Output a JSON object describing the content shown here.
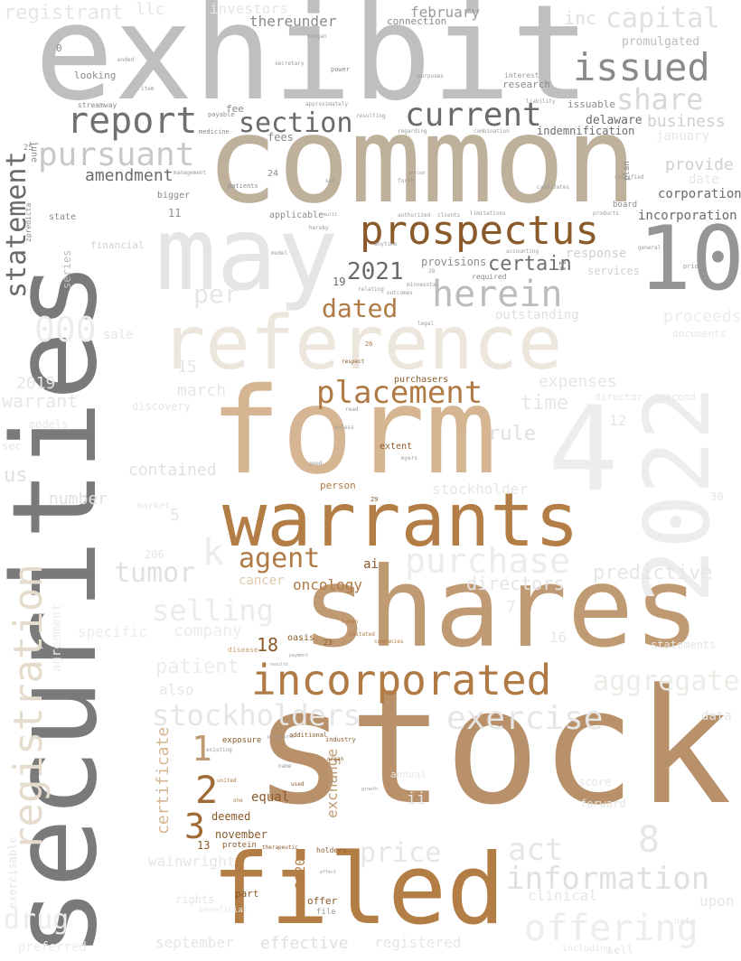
{
  "colors": {
    "background": "#ffffff",
    "light_gray": "#e8e8e8",
    "mid_gray": "#bdbdbd",
    "dark_gray": "#7a7a7a",
    "tan": "#c7a27a",
    "brown": "#b07a45",
    "dark_brown": "#8a5a2a",
    "beige": "#ede6dc"
  },
  "words": [
    {
      "text": "exhibit",
      "color": "#bfbfbf"
    },
    {
      "text": "common",
      "color": "#bfb09c"
    },
    {
      "text": "securities",
      "color": "#7a7a7a"
    },
    {
      "text": "stock",
      "color": "#b8906a"
    },
    {
      "text": "shares",
      "color": "#c09a72"
    },
    {
      "text": "form",
      "color": "#d5b592"
    },
    {
      "text": "may",
      "color": "#e5e5e5"
    },
    {
      "text": "reference",
      "color": "#ede6dc"
    },
    {
      "text": "filed",
      "color": "#b37d46"
    },
    {
      "text": "warrants",
      "color": "#b37d46"
    },
    {
      "text": "4",
      "color": "#ededed"
    },
    {
      "text": "2022",
      "color": "#ededed"
    },
    {
      "text": "10",
      "color": "#959595"
    },
    {
      "text": "registration",
      "color": "#e6dccd"
    },
    {
      "text": "incorporated",
      "color": "#b07a45"
    },
    {
      "text": "prospectus",
      "color": "#8a5a2a"
    },
    {
      "text": "placement",
      "color": "#b07a45"
    },
    {
      "text": "issued",
      "color": "#8a8a8a"
    },
    {
      "text": "report",
      "color": "#707070"
    },
    {
      "text": "current",
      "color": "#6a6a6a"
    },
    {
      "text": "section",
      "color": "#6a6a6a"
    },
    {
      "text": "pursuant",
      "color": "#c8c8c8"
    },
    {
      "text": "herein",
      "color": "#bcbcbc"
    },
    {
      "text": "statement",
      "color": "#6a6a6a"
    },
    {
      "text": "capital",
      "color": "#e0e0e0"
    },
    {
      "text": "share",
      "color": "#d8d8d8"
    },
    {
      "text": "offering",
      "color": "#ededed"
    },
    {
      "text": "information",
      "color": "#e0e0e0"
    },
    {
      "text": "purchase",
      "color": "#ececec"
    },
    {
      "text": "exercise",
      "color": "#e6e6e6"
    },
    {
      "text": "stockholders",
      "color": "#e6e6e6"
    },
    {
      "text": "selling",
      "color": "#ebebeb"
    },
    {
      "text": "aggregate",
      "color": "#ecece6"
    },
    {
      "text": "act",
      "color": "#e6e6e6"
    },
    {
      "text": "price",
      "color": "#e6e6e6"
    },
    {
      "text": "tumor",
      "color": "#e0e0e0"
    },
    {
      "text": "agent",
      "color": "#b07a45"
    },
    {
      "text": "dated",
      "color": "#b07a45"
    },
    {
      "text": "2021",
      "color": "#6a6a6a"
    },
    {
      "text": "certain",
      "color": "#707070"
    },
    {
      "text": "amendment",
      "color": "#6a6a6a"
    },
    {
      "text": "business",
      "color": "#cfcfcf"
    },
    {
      "text": "provide",
      "color": "#cfcfcf"
    },
    {
      "text": "corporation",
      "color": "#6a6a6a"
    },
    {
      "text": "incorporation",
      "color": "#6a6a6a"
    },
    {
      "text": "indemnification",
      "color": "#6a6a6a"
    },
    {
      "text": "delaware",
      "color": "#6a6a6a"
    },
    {
      "text": "february",
      "color": "#9a9a9a"
    },
    {
      "text": "registrant",
      "color": "#e6e6e6"
    },
    {
      "text": "thereunder",
      "color": "#8a8a8a"
    },
    {
      "text": "fees",
      "color": "#8a8a8a"
    },
    {
      "text": "fee",
      "color": "#8a8a8a"
    },
    {
      "text": "looking",
      "color": "#8a8a8a"
    },
    {
      "text": "research",
      "color": "#8a8a8a"
    },
    {
      "text": "interest",
      "color": "#9a9a9a"
    },
    {
      "text": "issuable",
      "color": "#8a8a8a"
    },
    {
      "text": "june",
      "color": "#8a8a8a"
    },
    {
      "text": "000",
      "color": "#ececec"
    },
    {
      "text": "per",
      "color": "#e6e6e6"
    },
    {
      "text": "provisions",
      "color": "#8a8a8a"
    },
    {
      "text": "required",
      "color": "#8a8a8a"
    },
    {
      "text": "response",
      "color": "#d0d0d0"
    },
    {
      "text": "outstanding",
      "color": "#e0e0e0"
    },
    {
      "text": "proceeds",
      "color": "#ececec"
    },
    {
      "text": "predictive",
      "color": "#e6e6e6"
    },
    {
      "text": "directors",
      "color": "#e6e6e6"
    },
    {
      "text": "company",
      "color": "#ececec"
    },
    {
      "text": "patient",
      "color": "#ececec"
    },
    {
      "text": "oncology",
      "color": "#b07a45"
    },
    {
      "text": "cancer",
      "color": "#e0c8ac"
    },
    {
      "text": "ai",
      "color": "#8a5a2a"
    },
    {
      "text": "person",
      "color": "#b07a45"
    },
    {
      "text": "contained",
      "color": "#e0e0e0"
    },
    {
      "text": "number",
      "color": "#e0e0e0"
    },
    {
      "text": "rule",
      "color": "#e0e0e0"
    },
    {
      "text": "time",
      "color": "#e6e6e6"
    },
    {
      "text": "expenses",
      "color": "#e6e6e6"
    },
    {
      "text": "march",
      "color": "#e6e6e6"
    },
    {
      "text": "warrant",
      "color": "#e6e6e6"
    },
    {
      "text": "2019",
      "color": "#e6e6e6"
    },
    {
      "text": "us",
      "color": "#e0e0e0"
    },
    {
      "text": "series",
      "color": "#bcbcbc"
    },
    {
      "text": "k",
      "color": "#ececec"
    },
    {
      "text": "stockholder",
      "color": "#e6e6e6"
    },
    {
      "text": "certificate",
      "color": "#d5b592"
    },
    {
      "text": "exchange",
      "color": "#c09a72"
    },
    {
      "text": "equal",
      "color": "#8a5a2a"
    },
    {
      "text": "deemed",
      "color": "#8a5a2a"
    },
    {
      "text": "november",
      "color": "#8a5a2a"
    },
    {
      "text": "2020",
      "color": "#b07a45"
    },
    {
      "text": "protein",
      "color": "#8a5a2a"
    },
    {
      "text": "offer",
      "color": "#8a5a2a"
    },
    {
      "text": "part",
      "color": "#8a5a2a"
    },
    {
      "text": "holders",
      "color": "#8a5a2a"
    },
    {
      "text": "effective",
      "color": "#e0e0e0"
    },
    {
      "text": "registered",
      "color": "#e6e6e6"
    },
    {
      "text": "september",
      "color": "#e6e6e6"
    },
    {
      "text": "drug",
      "color": "#ececec"
    },
    {
      "text": "preferred",
      "color": "#ececec"
    },
    {
      "text": "wainwright",
      "color": "#e6e6e6"
    },
    {
      "text": "clinical",
      "color": "#e6e6e6"
    },
    {
      "text": "upon",
      "color": "#e6e6e6"
    },
    {
      "text": "8",
      "color": "#e6e6e6"
    },
    {
      "text": "1",
      "color": "#c09a72"
    },
    {
      "text": "2",
      "color": "#a06a35"
    },
    {
      "text": "3",
      "color": "#a06a35"
    },
    {
      "text": "18",
      "color": "#8a5a2a"
    },
    {
      "text": "13",
      "color": "#8a5a2a"
    },
    {
      "text": "11",
      "color": "#8a8a8a"
    },
    {
      "text": "19",
      "color": "#6a6a6a"
    },
    {
      "text": "24",
      "color": "#8a8a8a"
    },
    {
      "text": "25",
      "color": "#8a8a8a"
    },
    {
      "text": "0",
      "color": "#8a8a8a"
    },
    {
      "text": "14",
      "color": "#8a8a8a"
    },
    {
      "text": "15",
      "color": "#e6e6e6"
    },
    {
      "text": "5",
      "color": "#e6e6e6"
    },
    {
      "text": "16",
      "color": "#e6e6e6"
    },
    {
      "text": "12",
      "color": "#e6e6e6"
    },
    {
      "text": "7",
      "color": "#e6e6e6"
    },
    {
      "text": "inc",
      "color": "#e0e0e0"
    },
    {
      "text": "llc",
      "color": "#e6e6e6"
    },
    {
      "text": "investors",
      "color": "#e6e6e6"
    },
    {
      "text": "connection",
      "color": "#8a8a8a"
    },
    {
      "text": "promulgated",
      "color": "#bcbcbc"
    },
    {
      "text": "january",
      "color": "#e6e6e6"
    },
    {
      "text": "applicable",
      "color": "#8a8a8a"
    },
    {
      "text": "bigger",
      "color": "#8a8a8a"
    },
    {
      "text": "state",
      "color": "#8a8a8a"
    },
    {
      "text": "board",
      "color": "#8a8a8a"
    },
    {
      "text": "services",
      "color": "#d0d0d0"
    },
    {
      "text": "financial",
      "color": "#d0d0d0"
    },
    {
      "text": "zpredicta",
      "color": "#8a8a8a"
    },
    {
      "text": "oasis",
      "color": "#8a5a2a"
    },
    {
      "text": "23",
      "color": "#8a5a2a"
    },
    {
      "text": "exposure",
      "color": "#8a5a2a"
    },
    {
      "text": "additional",
      "color": "#8a5a2a"
    },
    {
      "text": "industry",
      "color": "#8a5a2a"
    },
    {
      "text": "purchasers",
      "color": "#8a5a2a"
    },
    {
      "text": "extent",
      "color": "#8a5a2a"
    },
    {
      "text": "29",
      "color": "#8a5a2a"
    },
    {
      "text": "26",
      "color": "#b07a45"
    },
    {
      "text": "plan",
      "color": "#8a8a8a"
    },
    {
      "text": "streamway",
      "color": "#8a8a8a"
    },
    {
      "text": "payable",
      "color": "#8a8a8a"
    },
    {
      "text": "medicine",
      "color": "#8a8a8a"
    },
    {
      "text": "patients",
      "color": "#8a8a8a"
    },
    {
      "text": "power",
      "color": "#8a8a8a"
    },
    {
      "text": "secretary",
      "color": "#9a9a9a"
    },
    {
      "text": "resulting",
      "color": "#9a9a9a"
    },
    {
      "text": "regarding",
      "color": "#9a9a9a"
    },
    {
      "text": "liability",
      "color": "#9a9a9a"
    },
    {
      "text": "combination",
      "color": "#9a9a9a"
    },
    {
      "text": "approximately",
      "color": "#9a9a9a"
    },
    {
      "text": "limitations",
      "color": "#9a9a9a"
    },
    {
      "text": "authorized",
      "color": "#9a9a9a"
    },
    {
      "text": "clients",
      "color": "#9a9a9a"
    },
    {
      "text": "products",
      "color": "#9a9a9a"
    },
    {
      "text": "hereby",
      "color": "#9a9a9a"
    },
    {
      "text": "minnesota",
      "color": "#9a9a9a"
    },
    {
      "text": "relating",
      "color": "#9a9a9a"
    },
    {
      "text": "outcomes",
      "color": "#9a9a9a"
    },
    {
      "text": "legal",
      "color": "#9a9a9a"
    },
    {
      "text": "human",
      "color": "#b07a45"
    },
    {
      "text": "companies",
      "color": "#b07a45"
    },
    {
      "text": "restated",
      "color": "#b07a45"
    },
    {
      "text": "disease",
      "color": "#c7a27a"
    },
    {
      "text": "organ",
      "color": "#8a5a2a"
    },
    {
      "text": "used",
      "color": "#8a5a2a"
    },
    {
      "text": "therapeutic",
      "color": "#8a5a2a"
    },
    {
      "text": "name",
      "color": "#9a9a9a"
    },
    {
      "text": "existing",
      "color": "#9a9a9a"
    },
    {
      "text": "united",
      "color": "#b07a45"
    },
    {
      "text": "one",
      "color": "#b07a45"
    },
    {
      "text": "file",
      "color": "#9a9a9a"
    },
    {
      "text": "annual",
      "color": "#e6e6e6"
    },
    {
      "text": "data",
      "color": "#e6e6e6"
    },
    {
      "text": "director",
      "color": "#e6e6e6"
    },
    {
      "text": "second",
      "color": "#e6e6e6"
    },
    {
      "text": "documents",
      "color": "#e6e6e6"
    },
    {
      "text": "market",
      "color": "#e6e6e6"
    },
    {
      "text": "sale",
      "color": "#e6e6e6"
    },
    {
      "text": "also",
      "color": "#e6e6e6"
    },
    {
      "text": "specific",
      "color": "#ececec"
    },
    {
      "text": "agreement",
      "color": "#ececec"
    },
    {
      "text": "rights",
      "color": "#e6e6e6"
    },
    {
      "text": "note",
      "color": "#e6e6e6"
    },
    {
      "text": "ii",
      "color": "#e6e6e6"
    },
    {
      "text": "date",
      "color": "#e6e6e6"
    },
    {
      "text": "general",
      "color": "#9a9a9a"
    },
    {
      "text": "prior",
      "color": "#9a9a9a"
    },
    {
      "text": "accounting",
      "color": "#9a9a9a"
    },
    {
      "text": "unless",
      "color": "#9a9a9a"
    },
    {
      "text": "need",
      "color": "#9a9a9a"
    },
    {
      "text": "myers",
      "color": "#9a9a9a"
    },
    {
      "text": "respect",
      "color": "#8a5a2a"
    },
    {
      "text": "read",
      "color": "#9a9a9a"
    },
    {
      "text": "28",
      "color": "#9a9a9a"
    },
    {
      "text": "purposes",
      "color": "#9a9a9a"
    },
    {
      "text": "management",
      "color": "#9a9a9a"
    },
    {
      "text": "item",
      "color": "#9a9a9a"
    },
    {
      "text": "ended",
      "color": "#9a9a9a"
    },
    {
      "text": "forth",
      "color": "#9a9a9a"
    },
    {
      "text": "certified",
      "color": "#9a9a9a"
    },
    {
      "text": "candidates",
      "color": "#9a9a9a"
    },
    {
      "text": "morgan",
      "color": "#9a9a9a"
    },
    {
      "text": "model",
      "color": "#9a9a9a"
    },
    {
      "text": "set",
      "color": "#9a9a9a"
    },
    {
      "text": "anytime",
      "color": "#9a9a9a"
    },
    {
      "text": "discovery",
      "color": "#e6e6e6"
    },
    {
      "text": "models",
      "color": "#e6e6e6"
    },
    {
      "text": "score",
      "color": "#e6e6e6"
    },
    {
      "text": "forward",
      "color": "#e6e6e6"
    },
    {
      "text": "sec",
      "color": "#e6e6e6"
    },
    {
      "text": "30",
      "color": "#e6e6e6"
    },
    {
      "text": "206",
      "color": "#e6e6e6"
    },
    {
      "text": "period",
      "color": "#9a9a9a"
    },
    {
      "text": "multi",
      "color": "#9a9a9a"
    },
    {
      "text": "results",
      "color": "#9a9a9a"
    },
    {
      "text": "payment",
      "color": "#9a9a9a"
    },
    {
      "text": "effect",
      "color": "#9a9a9a"
    },
    {
      "text": "growth",
      "color": "#9a9a9a"
    },
    {
      "text": "procedures",
      "color": "#9a9a9a"
    },
    {
      "text": "statements",
      "color": "#e6e6e6"
    },
    {
      "text": "including",
      "color": "#e6e6e6"
    },
    {
      "text": "sell",
      "color": "#e6e6e6"
    },
    {
      "text": "beneficial",
      "color": "#e6e6e6"
    },
    {
      "text": "exercisable",
      "color": "#e6e6e6"
    }
  ]
}
